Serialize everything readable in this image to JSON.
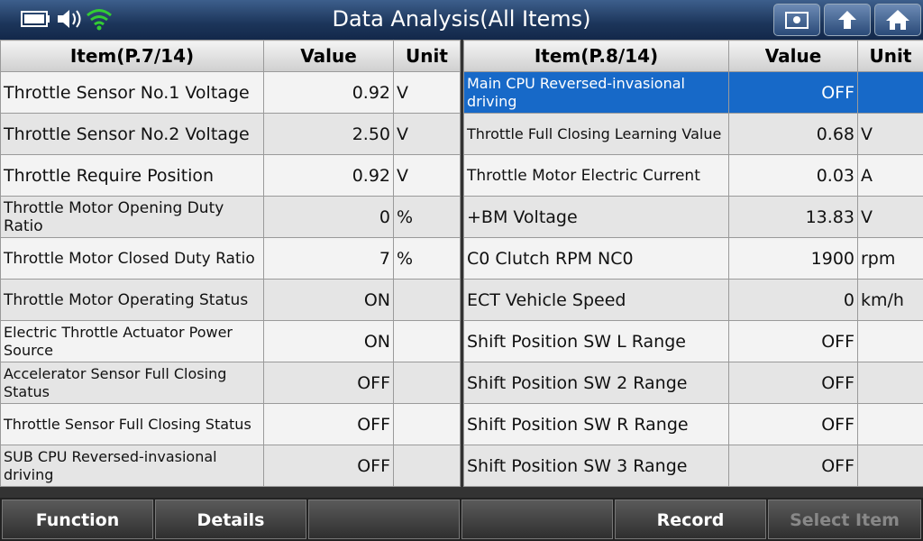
{
  "header": {
    "title": "Data Analysis(All Items)"
  },
  "left_table": {
    "columns": [
      "Item(P.7/14)",
      "Value",
      "Unit"
    ],
    "rows": [
      {
        "item": "Throttle Sensor No.1 Voltage",
        "value": "0.92",
        "unit": "V"
      },
      {
        "item": "Throttle Sensor No.2 Voltage",
        "value": "2.50",
        "unit": "V"
      },
      {
        "item": "Throttle Require Position",
        "value": "0.92",
        "unit": "V"
      },
      {
        "item": "Throttle Motor Opening Duty Ratio",
        "value": "0",
        "unit": "%"
      },
      {
        "item": "Throttle Motor Closed Duty Ratio",
        "value": "7",
        "unit": "%"
      },
      {
        "item": "Throttle Motor Operating Status",
        "value": "ON"
      },
      {
        "item": "Electric Throttle Actuator Power Source",
        "value": "ON"
      },
      {
        "item": "Accelerator Sensor Full Closing Status",
        "value": "OFF"
      },
      {
        "item": "Throttle Sensor Full Closing Status",
        "value": "OFF"
      },
      {
        "item": "SUB CPU Reversed-invasional driving",
        "value": "OFF"
      }
    ]
  },
  "right_table": {
    "columns": [
      "Item(P.8/14)",
      "Value",
      "Unit"
    ],
    "rows": [
      {
        "item": "Main CPU Reversed-invasional driving",
        "value": "OFF"
      },
      {
        "item": "Throttle Full Closing Learning Value",
        "value": "0.68",
        "unit": "V"
      },
      {
        "item": "Throttle Motor Electric Current",
        "value": "0.03",
        "unit": "A"
      },
      {
        "item": "+BM Voltage",
        "value": "13.83",
        "unit": "V"
      },
      {
        "item": "C0 Clutch RPM NC0",
        "value": "1900",
        "unit": "rpm"
      },
      {
        "item": "ECT Vehicle Speed",
        "value": "0",
        "unit": "km/h"
      },
      {
        "item": "Shift Position SW L Range",
        "value": "OFF"
      },
      {
        "item": "Shift Position SW 2 Range",
        "value": "OFF"
      },
      {
        "item": "Shift Position SW R Range",
        "value": "OFF"
      },
      {
        "item": "Shift Position SW 3 Range",
        "value": "OFF"
      }
    ]
  },
  "buttons": [
    "Function",
    "Details",
    "Record",
    "Select Item"
  ]
}
